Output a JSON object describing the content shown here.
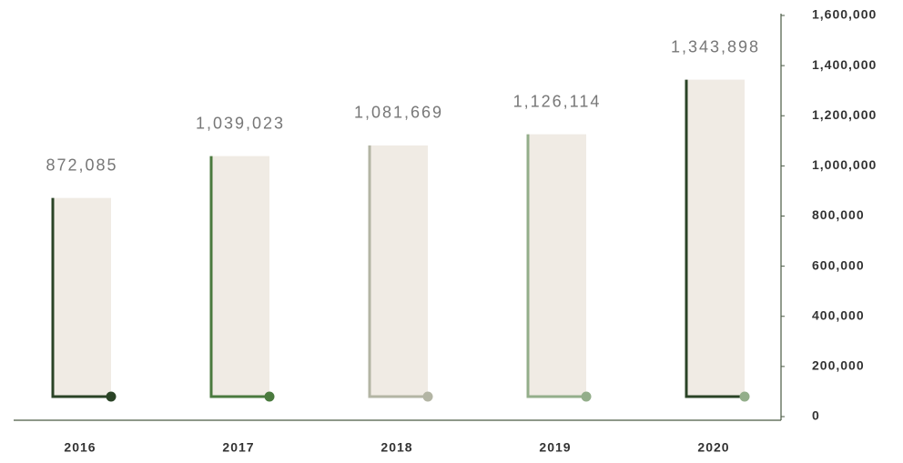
{
  "chart_data": {
    "type": "bar",
    "categories": [
      "2016",
      "2017",
      "2018",
      "2019",
      "2020"
    ],
    "values": [
      872085,
      1039023,
      1081669,
      1126114,
      1343898
    ],
    "value_labels": [
      "872,085",
      "1,039,023",
      "1,081,669",
      "1,126,114",
      "1,343,898"
    ],
    "bar_color": "#f0ebe4",
    "line_colors": [
      "#2a4326",
      "#4a7a3e",
      "#b3b5a4",
      "#93ae8a",
      "#2a4326"
    ],
    "dot_colors": [
      "#2a4326",
      "#4a7a3e",
      "#b3b5a4",
      "#93ae8a",
      "#93ae8a"
    ],
    "ylim": [
      0,
      1600000
    ],
    "yticks": [
      0,
      {
        "value": 200000,
        "label": "200,000"
      },
      {
        "value": 400000,
        "label": "400,000"
      },
      {
        "value": 600000,
        "label": "600,000"
      },
      {
        "value": 800000,
        "label": "800,000"
      },
      {
        "value": 1000000,
        "label": "1,000,000"
      },
      {
        "value": 1200000,
        "label": "1,200,000"
      },
      {
        "value": 1400000,
        "label": "1,400,000"
      },
      {
        "value": 1600000,
        "label": "1,600,000"
      }
    ],
    "y_axis_side": "right"
  }
}
